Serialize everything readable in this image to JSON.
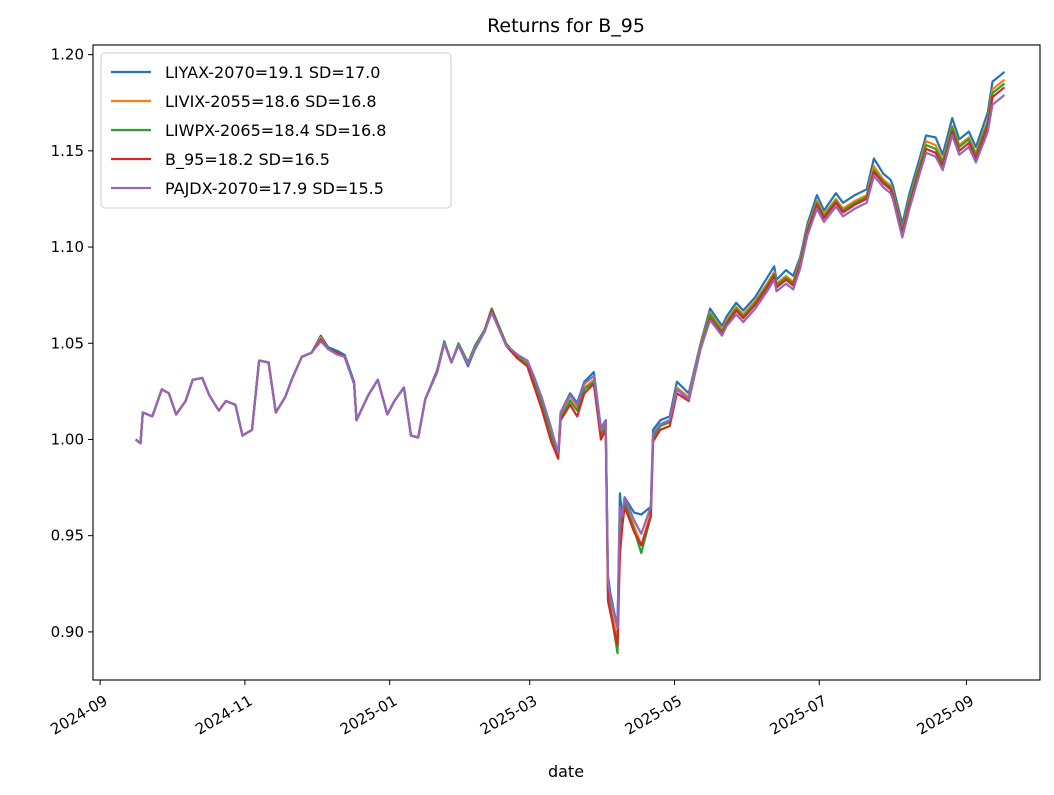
{
  "chart_data": {
    "type": "line",
    "title": "Returns for B_95",
    "xlabel": "date",
    "ylabel": "",
    "xlim": [
      "2024-08-29",
      "2025-10-02"
    ],
    "ylim": [
      0.875,
      1.205
    ],
    "x_ticks": [
      {
        "date": "2024-09-01",
        "label": "2024-09"
      },
      {
        "date": "2024-11-01",
        "label": "2024-11"
      },
      {
        "date": "2025-01-01",
        "label": "2025-01"
      },
      {
        "date": "2025-03-01",
        "label": "2025-03"
      },
      {
        "date": "2025-05-01",
        "label": "2025-05"
      },
      {
        "date": "2025-07-01",
        "label": "2025-07"
      },
      {
        "date": "2025-09-01",
        "label": "2025-09"
      }
    ],
    "y_ticks": [
      {
        "value": 0.9,
        "label": "0.90"
      },
      {
        "value": 0.95,
        "label": "0.95"
      },
      {
        "value": 1.0,
        "label": "1.00"
      },
      {
        "value": 1.05,
        "label": "1.05"
      },
      {
        "value": 1.1,
        "label": "1.10"
      },
      {
        "value": 1.15,
        "label": "1.15"
      },
      {
        "value": 1.2,
        "label": "1.20"
      }
    ],
    "legend_position": "upper-left",
    "grid": false,
    "x": [
      "2024-09-16",
      "2024-09-18",
      "2024-09-19",
      "2024-09-23",
      "2024-09-27",
      "2024-09-30",
      "2024-10-03",
      "2024-10-07",
      "2024-10-10",
      "2024-10-14",
      "2024-10-17",
      "2024-10-21",
      "2024-10-24",
      "2024-10-28",
      "2024-10-31",
      "2024-11-04",
      "2024-11-07",
      "2024-11-11",
      "2024-11-14",
      "2024-11-18",
      "2024-11-21",
      "2024-11-25",
      "2024-11-29",
      "2024-12-03",
      "2024-12-06",
      "2024-12-10",
      "2024-12-13",
      "2024-12-17",
      "2024-12-18",
      "2024-12-23",
      "2024-12-27",
      "2024-12-31",
      "2025-01-03",
      "2025-01-07",
      "2025-01-10",
      "2025-01-13",
      "2025-01-16",
      "2025-01-21",
      "2025-01-24",
      "2025-01-27",
      "2025-01-30",
      "2025-02-03",
      "2025-02-06",
      "2025-02-10",
      "2025-02-13",
      "2025-02-19",
      "2025-02-21",
      "2025-02-24",
      "2025-02-28",
      "2025-03-03",
      "2025-03-06",
      "2025-03-10",
      "2025-03-13",
      "2025-03-14",
      "2025-03-18",
      "2025-03-21",
      "2025-03-24",
      "2025-03-28",
      "2025-03-31",
      "2025-04-02",
      "2025-04-03",
      "2025-04-04",
      "2025-04-07",
      "2025-04-08",
      "2025-04-09",
      "2025-04-10",
      "2025-04-14",
      "2025-04-17",
      "2025-04-21",
      "2025-04-22",
      "2025-04-25",
      "2025-04-29",
      "2025-05-02",
      "2025-05-07",
      "2025-05-12",
      "2025-05-16",
      "2025-05-21",
      "2025-05-23",
      "2025-05-27",
      "2025-05-30",
      "2025-06-04",
      "2025-06-09",
      "2025-06-12",
      "2025-06-13",
      "2025-06-17",
      "2025-06-20",
      "2025-06-23",
      "2025-06-26",
      "2025-06-30",
      "2025-07-03",
      "2025-07-08",
      "2025-07-11",
      "2025-07-16",
      "2025-07-21",
      "2025-07-24",
      "2025-07-28",
      "2025-07-31",
      "2025-08-01",
      "2025-08-05",
      "2025-08-08",
      "2025-08-12",
      "2025-08-15",
      "2025-08-19",
      "2025-08-22",
      "2025-08-26",
      "2025-08-29",
      "2025-09-02",
      "2025-09-05",
      "2025-09-10",
      "2025-09-12",
      "2025-09-15",
      "2025-09-17"
    ],
    "series": [
      {
        "name": "LIYAX-2070=19.1 SD=17.0",
        "color": "#1f77b4",
        "values": [
          1.0,
          0.998,
          1.014,
          1.012,
          1.026,
          1.024,
          1.013,
          1.02,
          1.031,
          1.032,
          1.023,
          1.015,
          1.02,
          1.018,
          1.002,
          1.005,
          1.041,
          1.04,
          1.014,
          1.022,
          1.032,
          1.043,
          1.045,
          1.054,
          1.048,
          1.046,
          1.044,
          1.03,
          1.01,
          1.023,
          1.031,
          1.013,
          1.02,
          1.027,
          1.002,
          1.001,
          1.021,
          1.036,
          1.051,
          1.04,
          1.049,
          1.038,
          1.047,
          1.056,
          1.067,
          1.049,
          1.046,
          1.043,
          1.041,
          1.032,
          1.022,
          1.006,
          0.991,
          1.014,
          1.024,
          1.019,
          1.03,
          1.035,
          1.006,
          1.01,
          0.929,
          0.92,
          0.902,
          0.972,
          0.96,
          0.97,
          0.962,
          0.961,
          0.965,
          1.005,
          1.01,
          1.012,
          1.03,
          1.024,
          1.05,
          1.068,
          1.059,
          1.064,
          1.071,
          1.067,
          1.074,
          1.084,
          1.09,
          1.083,
          1.088,
          1.085,
          1.095,
          1.112,
          1.127,
          1.119,
          1.128,
          1.123,
          1.127,
          1.13,
          1.146,
          1.138,
          1.135,
          1.132,
          1.112,
          1.128,
          1.145,
          1.158,
          1.157,
          1.148,
          1.167,
          1.156,
          1.16,
          1.152,
          1.17,
          1.186,
          1.189,
          1.191
        ]
      },
      {
        "name": "LIVIX-2055=18.6 SD=16.8",
        "color": "#ff7f0e",
        "values": [
          1.0,
          0.998,
          1.014,
          1.012,
          1.026,
          1.024,
          1.013,
          1.02,
          1.031,
          1.032,
          1.023,
          1.015,
          1.02,
          1.018,
          1.002,
          1.005,
          1.041,
          1.04,
          1.014,
          1.022,
          1.032,
          1.043,
          1.045,
          1.053,
          1.047,
          1.045,
          1.043,
          1.029,
          1.01,
          1.023,
          1.031,
          1.013,
          1.02,
          1.027,
          1.002,
          1.001,
          1.021,
          1.035,
          1.05,
          1.04,
          1.049,
          1.04,
          1.048,
          1.057,
          1.068,
          1.05,
          1.047,
          1.044,
          1.04,
          1.031,
          1.02,
          1.003,
          0.992,
          1.012,
          1.021,
          1.016,
          1.027,
          1.031,
          1.003,
          1.008,
          0.924,
          0.914,
          0.895,
          0.96,
          0.958,
          0.967,
          0.955,
          0.945,
          0.962,
          1.002,
          1.008,
          1.01,
          1.027,
          1.022,
          1.049,
          1.066,
          1.057,
          1.062,
          1.069,
          1.065,
          1.072,
          1.081,
          1.087,
          1.081,
          1.085,
          1.082,
          1.093,
          1.11,
          1.124,
          1.117,
          1.125,
          1.12,
          1.124,
          1.127,
          1.142,
          1.135,
          1.132,
          1.129,
          1.109,
          1.125,
          1.142,
          1.155,
          1.153,
          1.145,
          1.163,
          1.153,
          1.157,
          1.149,
          1.166,
          1.182,
          1.185,
          1.187
        ]
      },
      {
        "name": "LIWPX-2065=18.4 SD=16.8",
        "color": "#2ca02c",
        "values": [
          1.0,
          0.998,
          1.014,
          1.012,
          1.026,
          1.024,
          1.013,
          1.02,
          1.031,
          1.032,
          1.023,
          1.015,
          1.02,
          1.018,
          1.002,
          1.005,
          1.041,
          1.04,
          1.014,
          1.022,
          1.032,
          1.043,
          1.045,
          1.052,
          1.047,
          1.045,
          1.043,
          1.029,
          1.01,
          1.023,
          1.031,
          1.013,
          1.02,
          1.027,
          1.002,
          1.001,
          1.021,
          1.035,
          1.051,
          1.04,
          1.05,
          1.04,
          1.049,
          1.057,
          1.068,
          1.05,
          1.047,
          1.043,
          1.039,
          1.03,
          1.019,
          1.002,
          0.991,
          1.011,
          1.02,
          1.015,
          1.026,
          1.03,
          1.002,
          1.007,
          0.922,
          0.912,
          0.889,
          0.955,
          0.962,
          0.968,
          0.953,
          0.941,
          0.96,
          1.001,
          1.007,
          1.009,
          1.026,
          1.021,
          1.048,
          1.065,
          1.056,
          1.061,
          1.068,
          1.064,
          1.071,
          1.08,
          1.086,
          1.08,
          1.084,
          1.081,
          1.092,
          1.109,
          1.123,
          1.116,
          1.124,
          1.119,
          1.123,
          1.126,
          1.14,
          1.134,
          1.131,
          1.128,
          1.108,
          1.124,
          1.141,
          1.153,
          1.151,
          1.144,
          1.162,
          1.152,
          1.156,
          1.148,
          1.165,
          1.18,
          1.183,
          1.185
        ]
      },
      {
        "name": "B_95=18.2 SD=16.5",
        "color": "#d62728",
        "values": [
          1.0,
          0.998,
          1.014,
          1.012,
          1.026,
          1.024,
          1.013,
          1.02,
          1.031,
          1.032,
          1.023,
          1.015,
          1.02,
          1.018,
          1.002,
          1.005,
          1.041,
          1.04,
          1.014,
          1.022,
          1.032,
          1.043,
          1.045,
          1.052,
          1.047,
          1.045,
          1.043,
          1.029,
          1.01,
          1.023,
          1.031,
          1.013,
          1.02,
          1.027,
          1.002,
          1.001,
          1.021,
          1.035,
          1.05,
          1.04,
          1.049,
          1.039,
          1.048,
          1.056,
          1.067,
          1.049,
          1.046,
          1.042,
          1.038,
          1.027,
          1.016,
          0.999,
          0.99,
          1.01,
          1.018,
          1.012,
          1.024,
          1.029,
          1.0,
          1.005,
          0.916,
          0.91,
          0.893,
          0.94,
          0.955,
          0.965,
          0.952,
          0.945,
          0.96,
          0.999,
          1.005,
          1.007,
          1.024,
          1.02,
          1.047,
          1.063,
          1.055,
          1.06,
          1.067,
          1.063,
          1.07,
          1.079,
          1.085,
          1.079,
          1.083,
          1.08,
          1.091,
          1.108,
          1.122,
          1.115,
          1.123,
          1.118,
          1.122,
          1.125,
          1.139,
          1.133,
          1.13,
          1.127,
          1.107,
          1.122,
          1.139,
          1.151,
          1.149,
          1.142,
          1.16,
          1.15,
          1.154,
          1.146,
          1.163,
          1.178,
          1.181,
          1.183
        ]
      },
      {
        "name": "PAJDX-2070=17.9 SD=15.5",
        "color": "#9467bd",
        "values": [
          1.0,
          0.998,
          1.014,
          1.012,
          1.026,
          1.024,
          1.013,
          1.02,
          1.031,
          1.032,
          1.023,
          1.015,
          1.02,
          1.018,
          1.002,
          1.005,
          1.041,
          1.04,
          1.014,
          1.022,
          1.032,
          1.043,
          1.045,
          1.051,
          1.047,
          1.044,
          1.043,
          1.029,
          1.01,
          1.023,
          1.031,
          1.013,
          1.02,
          1.027,
          1.002,
          1.001,
          1.021,
          1.035,
          1.05,
          1.04,
          1.049,
          1.039,
          1.048,
          1.056,
          1.066,
          1.049,
          1.047,
          1.044,
          1.041,
          1.032,
          1.022,
          1.006,
          0.993,
          1.014,
          1.023,
          1.018,
          1.029,
          1.033,
          1.005,
          1.01,
          0.927,
          0.918,
          0.902,
          0.965,
          0.96,
          0.97,
          0.958,
          0.951,
          0.965,
          1.003,
          1.008,
          1.01,
          1.026,
          1.021,
          1.047,
          1.062,
          1.054,
          1.059,
          1.065,
          1.061,
          1.068,
          1.077,
          1.083,
          1.077,
          1.081,
          1.078,
          1.089,
          1.106,
          1.12,
          1.113,
          1.121,
          1.116,
          1.12,
          1.123,
          1.137,
          1.131,
          1.128,
          1.125,
          1.105,
          1.12,
          1.137,
          1.149,
          1.147,
          1.14,
          1.158,
          1.148,
          1.152,
          1.144,
          1.16,
          1.174,
          1.177,
          1.179
        ]
      }
    ]
  }
}
